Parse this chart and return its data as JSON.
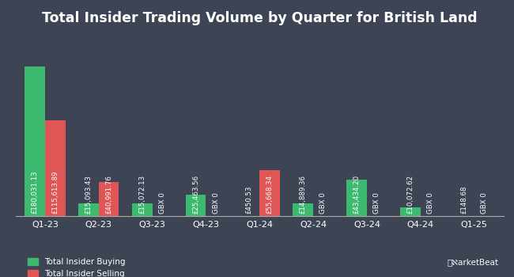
{
  "title": "Total Insider Trading Volume by Quarter for British Land",
  "quarters": [
    "Q1-23",
    "Q2-23",
    "Q3-23",
    "Q4-23",
    "Q1-24",
    "Q2-24",
    "Q3-24",
    "Q4-24",
    "Q1-25"
  ],
  "buying": [
    180031.13,
    15093.43,
    15072.13,
    25463.56,
    450.53,
    14889.36,
    43434.2,
    10072.62,
    148.68
  ],
  "selling": [
    115613.89,
    40991.76,
    0,
    0,
    55668.34,
    0,
    0,
    0,
    0
  ],
  "buying_labels": [
    "£180,031.13",
    "£15,093.43",
    "£15,072.13",
    "£25,463.56",
    "£450.53",
    "£14,889.36",
    "£43,434.20",
    "£10,072.62",
    "£148.68"
  ],
  "selling_labels": [
    "£115,613.89",
    "£40,991.76",
    "GBX 0",
    "GBX 0",
    "£55,668.34",
    "GBX 0",
    "GBX 0",
    "GBX 0",
    "GBX 0"
  ],
  "buying_color": "#3dba6f",
  "selling_color": "#e05555",
  "background_color": "#3d4555",
  "text_color": "#ffffff",
  "title_fontsize": 12.5,
  "label_fontsize": 6.2,
  "bar_width": 0.38,
  "ylim": [
    0,
    220000
  ],
  "legend_buying": "Total Insider Buying",
  "legend_selling": "Total Insider Selling"
}
